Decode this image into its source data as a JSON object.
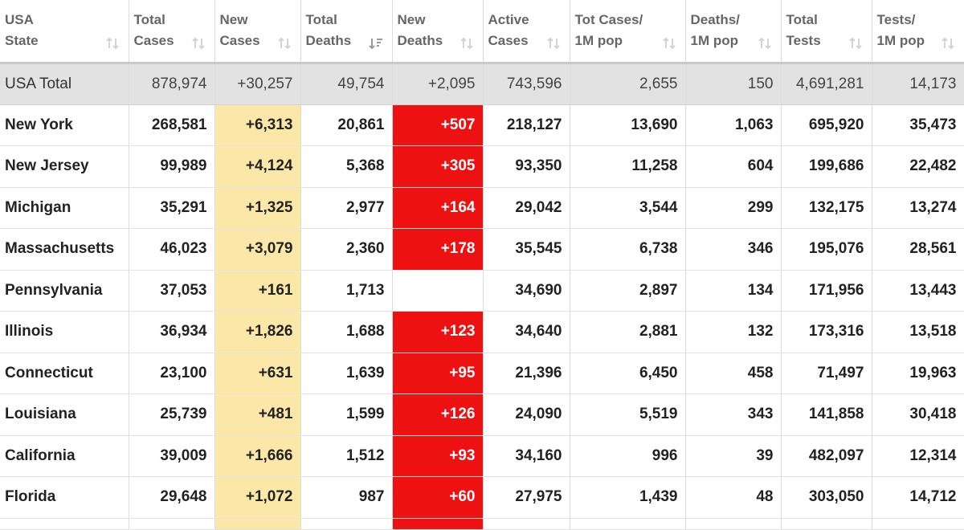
{
  "table": {
    "headers": [
      {
        "label": "USA\nState",
        "sort_icon": "sort-arrows-icon"
      },
      {
        "label": "Total\nCases",
        "sort_icon": "sort-arrows-icon"
      },
      {
        "label": "New\nCases",
        "sort_icon": "sort-arrows-icon"
      },
      {
        "label": "Total\nDeaths",
        "sort_icon": "sort-descending-icon"
      },
      {
        "label": "New\nDeaths",
        "sort_icon": "sort-arrows-icon"
      },
      {
        "label": "Active\nCases",
        "sort_icon": "sort-arrows-icon"
      },
      {
        "label": "Tot Cases/\n1M pop",
        "sort_icon": "sort-arrows-icon"
      },
      {
        "label": "Deaths/\n1M pop",
        "sort_icon": "sort-arrows-icon"
      },
      {
        "label": "Total\nTests",
        "sort_icon": "sort-arrows-icon"
      },
      {
        "label": "Tests/\n1M pop",
        "sort_icon": "sort-arrows-icon"
      }
    ],
    "total_row": {
      "state": "USA Total",
      "total_cases": "878,974",
      "new_cases": "+30,257",
      "total_deaths": "49,754",
      "new_deaths": "+2,095",
      "active_cases": "743,596",
      "cases_per_1m": "2,655",
      "deaths_per_1m": "150",
      "total_tests": "4,691,281",
      "tests_per_1m": "14,173"
    },
    "rows": [
      {
        "state": "New York",
        "total_cases": "268,581",
        "new_cases": "+6,313",
        "total_deaths": "20,861",
        "new_deaths": "+507",
        "active_cases": "218,127",
        "cases_per_1m": "13,690",
        "deaths_per_1m": "1,063",
        "total_tests": "695,920",
        "tests_per_1m": "35,473"
      },
      {
        "state": "New Jersey",
        "total_cases": "99,989",
        "new_cases": "+4,124",
        "total_deaths": "5,368",
        "new_deaths": "+305",
        "active_cases": "93,350",
        "cases_per_1m": "11,258",
        "deaths_per_1m": "604",
        "total_tests": "199,686",
        "tests_per_1m": "22,482"
      },
      {
        "state": "Michigan",
        "total_cases": "35,291",
        "new_cases": "+1,325",
        "total_deaths": "2,977",
        "new_deaths": "+164",
        "active_cases": "29,042",
        "cases_per_1m": "3,544",
        "deaths_per_1m": "299",
        "total_tests": "132,175",
        "tests_per_1m": "13,274"
      },
      {
        "state": "Massachusetts",
        "total_cases": "46,023",
        "new_cases": "+3,079",
        "total_deaths": "2,360",
        "new_deaths": "+178",
        "active_cases": "35,545",
        "cases_per_1m": "6,738",
        "deaths_per_1m": "346",
        "total_tests": "195,076",
        "tests_per_1m": "28,561"
      },
      {
        "state": "Pennsylvania",
        "total_cases": "37,053",
        "new_cases": "+161",
        "total_deaths": "1,713",
        "new_deaths": "",
        "active_cases": "34,690",
        "cases_per_1m": "2,897",
        "deaths_per_1m": "134",
        "total_tests": "171,956",
        "tests_per_1m": "13,443"
      },
      {
        "state": "Illinois",
        "total_cases": "36,934",
        "new_cases": "+1,826",
        "total_deaths": "1,688",
        "new_deaths": "+123",
        "active_cases": "34,640",
        "cases_per_1m": "2,881",
        "deaths_per_1m": "132",
        "total_tests": "173,316",
        "tests_per_1m": "13,518"
      },
      {
        "state": "Connecticut",
        "total_cases": "23,100",
        "new_cases": "+631",
        "total_deaths": "1,639",
        "new_deaths": "+95",
        "active_cases": "21,396",
        "cases_per_1m": "6,450",
        "deaths_per_1m": "458",
        "total_tests": "71,497",
        "tests_per_1m": "19,963"
      },
      {
        "state": "Louisiana",
        "total_cases": "25,739",
        "new_cases": "+481",
        "total_deaths": "1,599",
        "new_deaths": "+126",
        "active_cases": "24,090",
        "cases_per_1m": "5,519",
        "deaths_per_1m": "343",
        "total_tests": "141,858",
        "tests_per_1m": "30,418"
      },
      {
        "state": "California",
        "total_cases": "39,009",
        "new_cases": "+1,666",
        "total_deaths": "1,512",
        "new_deaths": "+93",
        "active_cases": "34,160",
        "cases_per_1m": "996",
        "deaths_per_1m": "39",
        "total_tests": "482,097",
        "tests_per_1m": "12,314"
      },
      {
        "state": "Florida",
        "total_cases": "29,648",
        "new_cases": "+1,072",
        "total_deaths": "987",
        "new_deaths": "+60",
        "active_cases": "27,975",
        "cases_per_1m": "1,439",
        "deaths_per_1m": "48",
        "total_tests": "303,050",
        "tests_per_1m": "14,712"
      }
    ]
  },
  "colors": {
    "new_cases_highlight": "#fbe8a9",
    "new_deaths_highlight": "#ee1111",
    "total_row_background": "#e2e2e2",
    "header_text": "#666666"
  }
}
